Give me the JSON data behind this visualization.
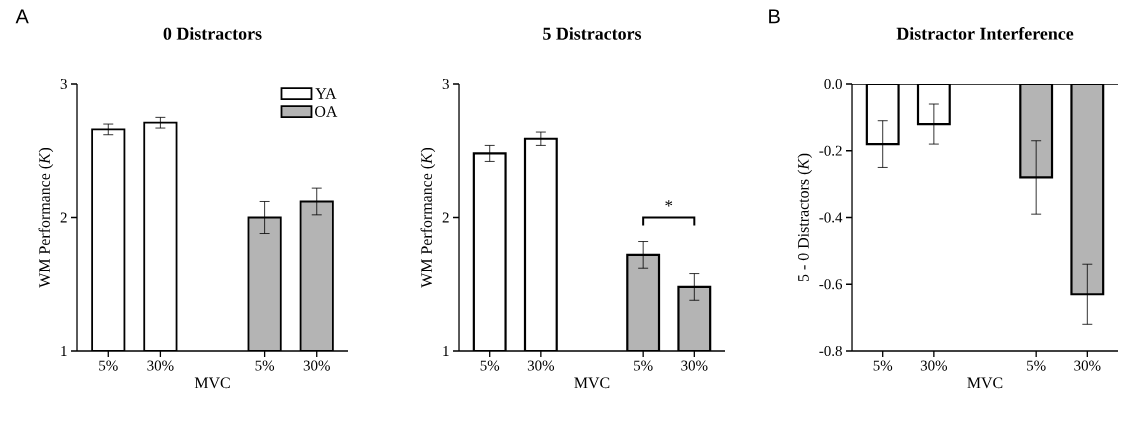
{
  "chart_data": [
    {
      "type": "bar",
      "title": "0 Distractors",
      "xlabel": "MVC",
      "ylabel": "WM Performance (*K*)",
      "categories": [
        "5%",
        "30%",
        null,
        "5%",
        "30%"
      ],
      "ylim": [
        1,
        3
      ],
      "yticks": [
        1,
        2,
        3
      ],
      "legend": "top right",
      "annotations": [
        "A"
      ],
      "series": [
        {
          "name": "YA",
          "color": "#ffffff",
          "values": [
            2.66,
            2.71,
            null,
            null,
            null
          ],
          "errors": [
            0.04,
            0.04,
            null,
            null,
            null
          ]
        },
        {
          "name": "OA",
          "color": "#b4b4b4",
          "values": [
            null,
            null,
            null,
            2.0,
            2.12
          ],
          "errors": [
            null,
            null,
            null,
            0.12,
            0.1
          ]
        }
      ]
    },
    {
      "type": "bar",
      "title": "5 Distractors",
      "xlabel": "MVC",
      "ylabel": "WM Performance (*K*)",
      "categories": [
        "5%",
        "30%",
        null,
        "5%",
        "30%"
      ],
      "ylim": [
        1,
        3
      ],
      "yticks": [
        1,
        2,
        3
      ],
      "annotations": [
        "*"
      ],
      "series": [
        {
          "color": "#ffffff",
          "values": [
            2.48,
            2.59,
            null,
            null,
            null
          ],
          "errors": [
            0.06,
            0.05,
            null,
            null,
            null
          ]
        },
        {
          "color": "#b4b4b4",
          "values": [
            null,
            null,
            null,
            1.72,
            1.48
          ],
          "errors": [
            null,
            null,
            null,
            0.1,
            0.1
          ]
        }
      ]
    },
    {
      "type": "bar",
      "title": "Distractor Interference",
      "xlabel": "MVC",
      "ylabel": "5 - 0 Distractors (*K*)",
      "categories": [
        "5%",
        "30%",
        null,
        "5%",
        "30%"
      ],
      "ylim": [
        -0.8,
        0
      ],
      "yticks": [
        {
          "value": -0.8,
          "label": "-0.8"
        },
        {
          "value": -0.6,
          "label": "-0.6"
        },
        {
          "value": -0.4,
          "label": "-0.4"
        },
        {
          "value": -0.2,
          "label": "-0.2"
        },
        {
          "value": 0,
          "label": "0.0"
        }
      ],
      "annotations": [
        "B"
      ],
      "series": [
        {
          "color": "#ffffff",
          "values": [
            -0.18,
            -0.12,
            null,
            null,
            null
          ],
          "errors": [
            0.07,
            0.06,
            null,
            null,
            null
          ]
        },
        {
          "color": "#b4b4b4",
          "values": [
            null,
            null,
            null,
            -0.28,
            -0.63
          ],
          "errors": [
            null,
            null,
            null,
            0.11,
            0.09
          ]
        }
      ]
    }
  ]
}
